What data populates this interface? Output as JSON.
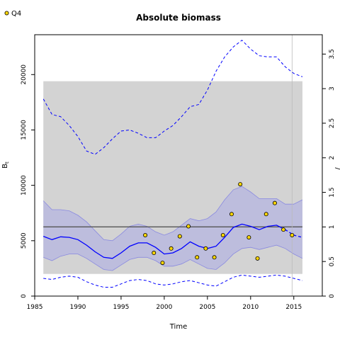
{
  "chart_data": {
    "type": "line",
    "title": "Absolute biomass",
    "xlabel": "Time",
    "ylabel": "B_t",
    "ylabel_main": "B",
    "ylabel_sub": "t",
    "right_axis_label": "/",
    "xlim": [
      1985,
      2018.3
    ],
    "ylim": [
      0,
      23600
    ],
    "right_ylim": [
      0,
      3.78
    ],
    "right_scale_per_unit": 6250,
    "x_ticks": [
      1985,
      1990,
      1995,
      2000,
      2005,
      2010,
      2015
    ],
    "y_ticks": [
      0,
      5000,
      10000,
      15000,
      20000
    ],
    "right_ticks": [
      0,
      0.5,
      1,
      1.5,
      2,
      2.5,
      3,
      3.5
    ],
    "legend": {
      "label": "Q4",
      "position": "top-left"
    },
    "grid": false,
    "colors": {
      "band": "#d3d3d3",
      "ci_fill": "#b8b8de",
      "series": "#0000ff",
      "reference": "#555555",
      "points": "#ffd700",
      "vline": "#bbbbbb"
    },
    "shaded_band": {
      "x": [
        1986,
        2016
      ],
      "y": [
        2000,
        19400
      ]
    },
    "reference_line": {
      "y": 6250
    },
    "vline": {
      "x": 2014.8
    },
    "estimate": {
      "x": [
        1986,
        1987,
        1988,
        1989,
        1990,
        1991,
        1992,
        1993,
        1994,
        1995,
        1996,
        1997,
        1998,
        1999,
        2000,
        2001,
        2002,
        2003,
        2004,
        2005,
        2006,
        2007,
        2008,
        2009,
        2010,
        2011,
        2012,
        2013,
        2014,
        2015,
        2016
      ],
      "y": [
        5400,
        5100,
        5350,
        5300,
        5100,
        4600,
        4000,
        3500,
        3400,
        3900,
        4500,
        4800,
        4800,
        4400,
        3800,
        3900,
        4300,
        4900,
        4500,
        4300,
        4500,
        5300,
        6200,
        6500,
        6300,
        6000,
        6300,
        6400,
        6000,
        5500,
        5300
      ]
    },
    "ci_lower": [
      3500,
      3200,
      3600,
      3800,
      3800,
      3400,
      2900,
      2400,
      2300,
      2800,
      3300,
      3500,
      3500,
      3200,
      2700,
      2700,
      2900,
      3300,
      2900,
      2500,
      2400,
      3000,
      3800,
      4300,
      4400,
      4200,
      4400,
      4600,
      4300,
      3800,
      3400
    ],
    "ci_upper": [
      8600,
      7800,
      7800,
      7700,
      7300,
      6700,
      5900,
      5100,
      5000,
      5600,
      6300,
      6500,
      6300,
      5800,
      5500,
      5800,
      6400,
      7000,
      6800,
      7000,
      7600,
      8700,
      9600,
      9900,
      9400,
      8800,
      8800,
      8800,
      8300,
      8300,
      8700
    ],
    "upper_dashed": {
      "x": [
        1986,
        1987,
        1988,
        1989,
        1990,
        1991,
        1992,
        1993,
        1994,
        1995,
        1996,
        1997,
        1998,
        1999,
        2000,
        2001,
        2002,
        2003,
        2004,
        2005,
        2006,
        2007,
        2008,
        2009,
        2010,
        2011,
        2012,
        2013,
        2014,
        2015,
        2016
      ],
      "y": [
        17800,
        16400,
        16200,
        15400,
        14400,
        13100,
        12800,
        13400,
        14200,
        14900,
        15000,
        14700,
        14300,
        14300,
        14900,
        15400,
        16200,
        17100,
        17300,
        18600,
        20300,
        21600,
        22500,
        23100,
        22300,
        21700,
        21600,
        21600,
        20700,
        20100,
        19800
      ]
    },
    "lower_dashed": {
      "x": [
        1986,
        1987,
        1988,
        1989,
        1990,
        1991,
        1992,
        1993,
        1994,
        1995,
        1996,
        1997,
        1998,
        1999,
        2000,
        2001,
        2002,
        2003,
        2004,
        2005,
        2006,
        2007,
        2008,
        2009,
        2010,
        2011,
        2012,
        2013,
        2014,
        2015,
        2016
      ],
      "y": [
        1600,
        1500,
        1700,
        1800,
        1700,
        1300,
        1000,
        800,
        800,
        1100,
        1400,
        1500,
        1400,
        1100,
        1000,
        1100,
        1300,
        1400,
        1200,
        1000,
        900,
        1300,
        1700,
        1900,
        1800,
        1700,
        1800,
        1900,
        1800,
        1600,
        1400
      ]
    },
    "observations": {
      "x": [
        1997.8,
        1998.8,
        1999.8,
        2000.8,
        2001.8,
        2002.8,
        2003.8,
        2004.8,
        2005.8,
        2006.8,
        2007.8,
        2008.8,
        2009.8,
        2010.8,
        2011.8,
        2012.8,
        2013.8,
        2014.8
      ],
      "y": [
        5500,
        3900,
        3000,
        4300,
        5400,
        6300,
        3500,
        4300,
        3500,
        5500,
        7400,
        10100,
        5300,
        3400,
        7400,
        8400,
        6000,
        5500
      ]
    }
  }
}
